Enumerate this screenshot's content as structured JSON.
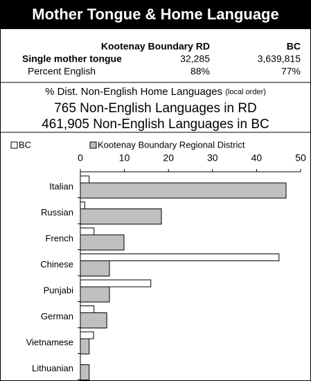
{
  "header": {
    "title": "Mother Tongue & Home Language"
  },
  "table": {
    "columns": [
      "Kootenay Boundary RD",
      "BC"
    ],
    "rows": [
      [
        "Single mother tongue",
        "32,285",
        "3,639,815"
      ],
      [
        "Percent English",
        "88%",
        "77%"
      ]
    ]
  },
  "summary": {
    "heading": "% Dist. Non-English Home Languages",
    "heading_note": "(local order)",
    "lines": [
      "765 Non-English Languages in RD",
      "461,905 Non-English Languages in BC"
    ]
  },
  "chart_data": {
    "type": "bar",
    "orientation": "horizontal",
    "categories": [
      "Italian",
      "Russian",
      "French",
      "Chinese",
      "Punjabi",
      "German",
      "Vietnamese",
      "Lithuanian"
    ],
    "series": [
      {
        "name": "BC",
        "color": "#ffffff",
        "values": [
          2.0,
          1.0,
          3.1,
          45.1,
          16.0,
          3.1,
          3.0,
          0
        ]
      },
      {
        "name": "Kootenay Boundary Regional District",
        "color": "#c0c0c0",
        "values": [
          46.7,
          18.4,
          9.9,
          6.6,
          6.6,
          6.0,
          2.0,
          2.0
        ]
      }
    ],
    "xlim": [
      0,
      50
    ],
    "xticks": [
      0,
      10,
      20,
      30,
      40,
      50
    ],
    "legend": "top"
  }
}
